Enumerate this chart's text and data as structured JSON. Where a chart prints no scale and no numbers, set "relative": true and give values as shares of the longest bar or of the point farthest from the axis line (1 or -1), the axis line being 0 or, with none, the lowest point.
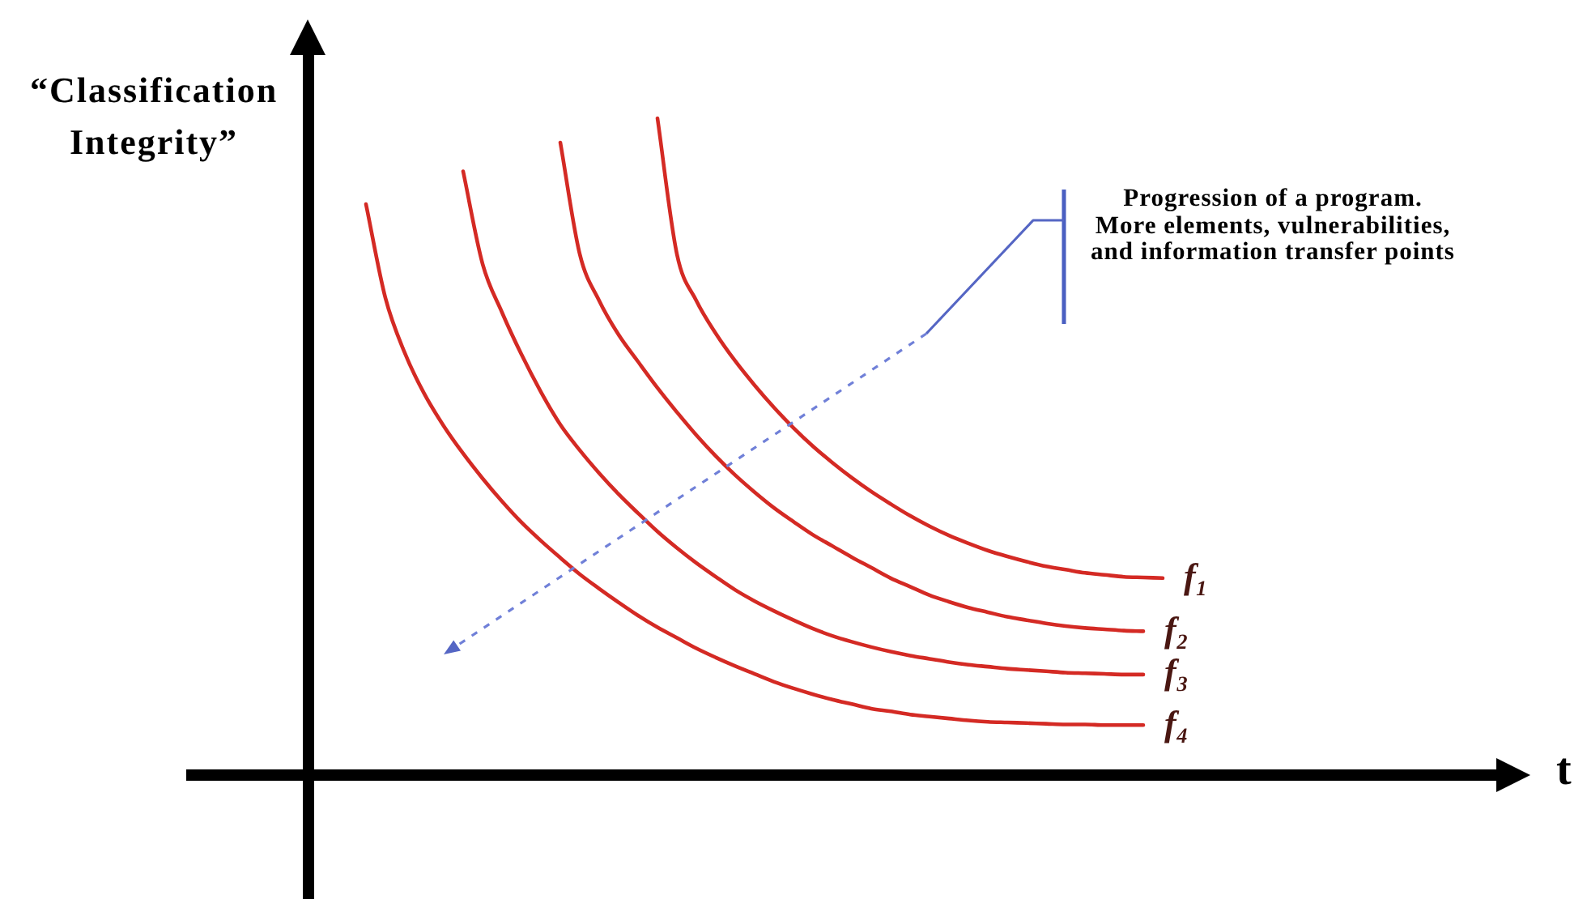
{
  "chart_data": {
    "type": "line",
    "ylabel": "“Classification Integrity”",
    "xlabel": "t",
    "annotations": [
      "Progression of a program.",
      "More elements, vulnerabilities, and information transfer points"
    ],
    "categories": [
      null,
      null,
      null,
      null,
      null,
      null,
      null,
      null,
      null,
      null,
      null,
      null,
      null,
      null,
      null,
      null,
      null,
      null,
      null,
      null,
      null,
      null,
      null,
      null,
      null,
      null,
      null,
      null,
      null,
      null,
      null,
      null,
      null,
      null,
      null,
      null,
      null,
      null,
      null,
      null,
      null,
      null,
      null,
      null,
      null,
      null,
      null,
      null,
      null,
      null,
      null,
      null,
      null,
      null,
      null,
      null,
      null,
      null,
      null,
      null,
      null,
      null,
      null,
      null,
      null,
      null,
      null,
      null,
      null
    ],
    "relative": true,
    "marker": "none",
    "line_style": "solid",
    "legend": false,
    "grid": false,
    "series": [
      {
        "name": "f₁",
        "color": "#d42a24",
        "values": [
          null,
          null,
          null,
          null,
          null,
          null,
          null,
          null,
          null,
          null,
          null,
          null,
          null,
          null,
          null,
          null,
          null,
          null,
          null,
          null,
          null,
          null,
          null,
          null,
          1,
          0.793,
          0.722,
          0.672,
          0.63,
          0.593,
          0.559,
          0.528,
          0.5,
          0.475,
          0.452,
          0.431,
          0.412,
          0.394,
          0.378,
          0.364,
          0.352,
          0.341,
          0.332,
          0.324,
          0.317,
          0.312,
          0.307,
          0.304,
          0.301,
          0.3,
          0.299,
          null,
          null,
          null,
          null,
          null,
          null,
          null,
          null,
          null,
          null,
          null,
          null,
          null,
          null,
          null,
          null,
          null,
          null
        ]
      },
      {
        "name": "f₂",
        "color": "#d42a24",
        "values": [
          null,
          null,
          null,
          null,
          null,
          null,
          null,
          null,
          null,
          null,
          null,
          null,
          null,
          null,
          null,
          null,
          null,
          null,
          null,
          0.963,
          0.793,
          0.722,
          0.67,
          0.629,
          0.589,
          0.552,
          0.517,
          0.485,
          0.456,
          0.43,
          0.406,
          0.385,
          0.365,
          0.348,
          0.331,
          0.315,
          0.299,
          0.286,
          0.273,
          0.263,
          0.254,
          0.247,
          0.24,
          0.235,
          0.23,
          0.226,
          0.223,
          0.221,
          0.219,
          0.218,
          null,
          null,
          null,
          null,
          null,
          null,
          null,
          null,
          null,
          null,
          null,
          null,
          null,
          null,
          null,
          null,
          null,
          null,
          null
        ]
      },
      {
        "name": "f₃",
        "color": "#d42a24",
        "values": [
          null,
          null,
          null,
          null,
          null,
          null,
          null,
          null,
          null,
          null,
          null,
          null,
          null,
          null,
          0.919,
          0.778,
          0.704,
          0.64,
          0.583,
          0.533,
          0.494,
          0.459,
          0.427,
          0.398,
          0.37,
          0.345,
          0.322,
          0.301,
          0.281,
          0.264,
          0.249,
          0.235,
          0.222,
          0.211,
          0.202,
          0.194,
          0.187,
          0.181,
          0.176,
          0.171,
          0.167,
          0.164,
          0.161,
          0.159,
          0.157,
          0.155,
          0.154,
          0.153,
          0.152,
          0.152,
          null,
          null,
          null,
          null,
          null,
          null,
          null,
          null,
          null,
          null,
          null,
          null,
          null,
          null,
          null,
          null,
          null,
          null,
          null
        ]
      },
      {
        "name": "f₄",
        "color": "#d42a24",
        "values": [
          null,
          null,
          null,
          null,
          null,
          null,
          null,
          null,
          null,
          0.869,
          0.726,
          0.642,
          0.58,
          0.531,
          0.489,
          0.451,
          0.416,
          0.384,
          0.356,
          0.33,
          0.305,
          0.283,
          0.262,
          0.242,
          0.224,
          0.208,
          0.192,
          0.178,
          0.165,
          0.153,
          0.141,
          0.131,
          0.122,
          0.114,
          0.107,
          0.1,
          0.096,
          0.091,
          0.088,
          0.085,
          0.082,
          0.08,
          0.079,
          0.078,
          0.077,
          0.076,
          0.076,
          0.075,
          0.075,
          0.075,
          null,
          null,
          null,
          null,
          null,
          null,
          null,
          null,
          null,
          null,
          null,
          null,
          null,
          null,
          null,
          null,
          null,
          null,
          null
        ]
      }
    ]
  }
}
